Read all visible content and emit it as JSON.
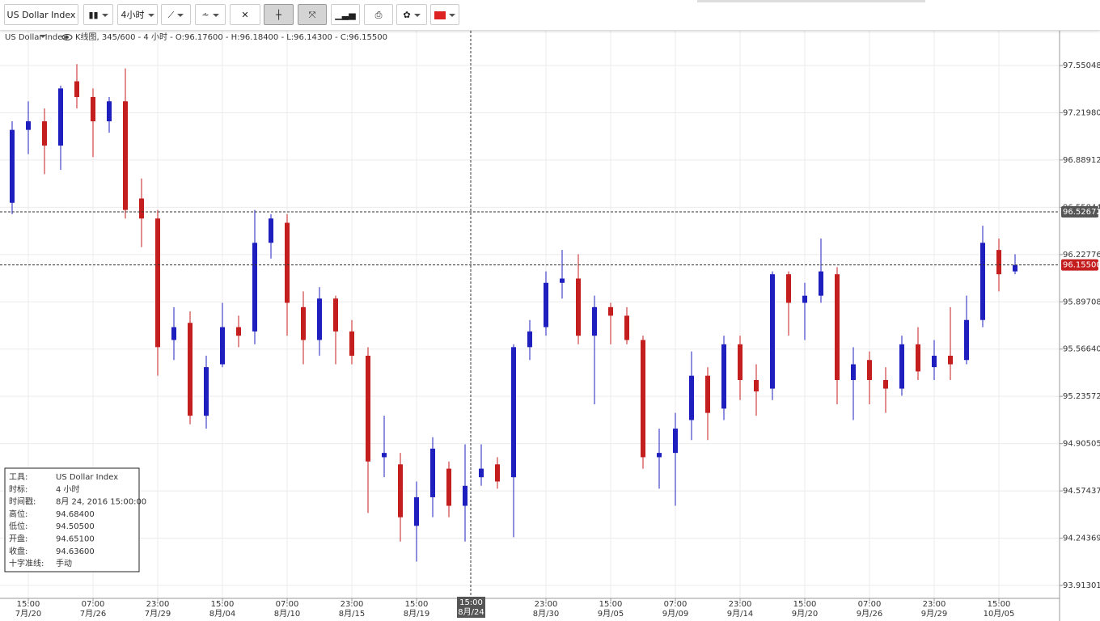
{
  "toolbar": {
    "instrument": "US Dollar Index",
    "timeframe": "4小时"
  },
  "chart_data": {
    "type": "candlestick",
    "title": "US Dollar Index",
    "subtitle": "K线图, 345/600 - 4 小时 - O:96.17600 - H:96.18400 - L:96.14300 - C:96.15500",
    "categories": [
      null,
      "7月/20",
      null,
      null,
      null,
      "7月/26",
      null,
      null,
      null,
      "7月/29",
      null,
      null,
      null,
      "8月/04",
      null,
      null,
      null,
      "8月/10",
      null,
      null,
      null,
      "8月/15",
      null,
      null,
      null,
      "8月/19",
      null,
      null,
      null,
      null,
      null,
      null,
      null,
      "8月/30",
      null,
      null,
      null,
      "9月/05",
      null,
      null,
      null,
      "9月/09",
      null,
      null,
      null,
      "9月/14",
      null,
      null,
      null,
      "9月/20",
      null,
      null,
      null,
      "9月/26",
      null,
      null,
      null,
      "9月/29",
      null,
      null,
      null,
      "10月/05",
      null
    ],
    "category_times": [
      null,
      "15:00",
      null,
      null,
      null,
      "07:00",
      null,
      null,
      null,
      "23:00",
      null,
      null,
      null,
      "15:00",
      null,
      null,
      null,
      "07:00",
      null,
      null,
      null,
      "23:00",
      null,
      null,
      null,
      "15:00",
      null,
      null,
      null,
      null,
      null,
      null,
      null,
      "23:00",
      null,
      null,
      null,
      "15:00",
      null,
      null,
      null,
      "07:00",
      null,
      null,
      null,
      "23:00",
      null,
      null,
      null,
      "15:00",
      null,
      null,
      null,
      "07:00",
      null,
      null,
      null,
      "23:00",
      null,
      null,
      null,
      "15:00",
      null
    ],
    "open": [
      96.59,
      97.1,
      97.16,
      96.99,
      97.44,
      97.33,
      97.16,
      97.3,
      96.62,
      96.48,
      95.63,
      95.75,
      95.1,
      95.46,
      95.72,
      95.69,
      96.31,
      96.45,
      95.86,
      95.63,
      95.92,
      95.69,
      95.52,
      94.81,
      94.76,
      94.33,
      94.53,
      94.73,
      94.47,
      94.67,
      94.76,
      94.67,
      95.58,
      95.72,
      96.03,
      96.06,
      95.66,
      95.86,
      95.8,
      95.63,
      94.81,
      94.84,
      95.07,
      95.38,
      95.15,
      95.6,
      95.35,
      95.29,
      96.09,
      95.89,
      95.94,
      96.09,
      95.35,
      95.49,
      95.35,
      95.29,
      95.6,
      95.44,
      95.52,
      95.49,
      95.77,
      96.26,
      96.11
    ],
    "high": [
      97.16,
      97.3,
      97.25,
      97.41,
      97.56,
      97.39,
      97.33,
      97.53,
      96.76,
      96.54,
      95.86,
      95.83,
      95.52,
      95.89,
      95.8,
      96.54,
      96.51,
      96.51,
      95.97,
      96.0,
      95.94,
      95.77,
      95.58,
      95.1,
      94.84,
      94.64,
      94.95,
      94.78,
      94.9,
      94.9,
      94.81,
      95.6,
      95.77,
      96.11,
      96.26,
      96.23,
      95.94,
      95.89,
      95.86,
      95.66,
      95.01,
      95.12,
      95.55,
      95.44,
      95.66,
      95.66,
      95.46,
      96.11,
      96.11,
      96.03,
      96.34,
      96.14,
      95.58,
      95.55,
      95.44,
      95.66,
      95.72,
      95.63,
      95.86,
      95.94,
      96.43,
      96.34,
      96.23
    ],
    "low": [
      96.51,
      96.93,
      96.79,
      96.82,
      97.25,
      96.91,
      97.08,
      96.48,
      96.28,
      95.38,
      95.49,
      95.04,
      95.01,
      95.44,
      95.58,
      95.6,
      96.2,
      95.66,
      95.46,
      95.52,
      95.46,
      95.46,
      94.42,
      94.67,
      94.22,
      94.08,
      94.39,
      94.39,
      94.22,
      94.61,
      94.59,
      94.25,
      95.49,
      95.66,
      95.92,
      95.6,
      95.18,
      95.6,
      95.6,
      94.73,
      94.59,
      94.47,
      94.93,
      94.93,
      95.07,
      95.21,
      95.1,
      95.21,
      95.66,
      95.63,
      95.89,
      95.18,
      95.07,
      95.18,
      95.12,
      95.24,
      95.35,
      95.35,
      95.35,
      95.46,
      95.72,
      95.97,
      96.09
    ],
    "close": [
      97.1,
      97.16,
      96.99,
      97.39,
      97.33,
      97.16,
      97.3,
      96.54,
      96.48,
      95.58,
      95.72,
      95.1,
      95.44,
      95.72,
      95.66,
      96.31,
      96.48,
      95.89,
      95.63,
      95.92,
      95.69,
      95.52,
      94.78,
      94.84,
      94.39,
      94.53,
      94.87,
      94.47,
      94.61,
      94.73,
      94.64,
      95.58,
      95.69,
      96.03,
      96.06,
      95.66,
      95.86,
      95.8,
      95.63,
      94.81,
      94.84,
      95.01,
      95.38,
      95.12,
      95.6,
      95.35,
      95.27,
      96.09,
      95.89,
      95.94,
      96.11,
      95.35,
      95.46,
      95.35,
      95.29,
      95.6,
      95.41,
      95.52,
      95.46,
      95.77,
      96.31,
      96.09,
      96.155
    ],
    "up_color": "#1f1fbf",
    "down_color": "#c41e1e",
    "ylim": [
      93.8225,
      97.7937
    ],
    "yticks": [
      97.55048,
      {
        "value": 97.2198,
        "label": "97.21980"
      },
      96.88912,
      96.55844,
      96.22776,
      95.89708,
      {
        "value": 95.5664,
        "label": "95.56640"
      },
      95.23572,
      94.90505,
      94.57437,
      94.24369,
      93.91301
    ],
    "grid": true,
    "price_lines": [
      {
        "value": 96.52672,
        "label": "96.52672",
        "color": "#555555"
      },
      {
        "value": 96.155,
        "label": "96.15500",
        "color": "#c41e1e"
      }
    ],
    "crosshair": {
      "time": "15:00",
      "date": "8月/24"
    }
  },
  "info_box": {
    "rows": [
      [
        "工具:",
        "US Dollar Index"
      ],
      [
        "时标:",
        "4 小时"
      ],
      [
        "时间戳:",
        "8月 24, 2016 15:00:00"
      ],
      [
        "高位:",
        "94.68400"
      ],
      [
        "低位:",
        "94.50500"
      ],
      [
        "开盘:",
        "94.65100"
      ],
      [
        "收盘:",
        "94.63600"
      ],
      [
        "十字准线:",
        "手动"
      ]
    ]
  }
}
